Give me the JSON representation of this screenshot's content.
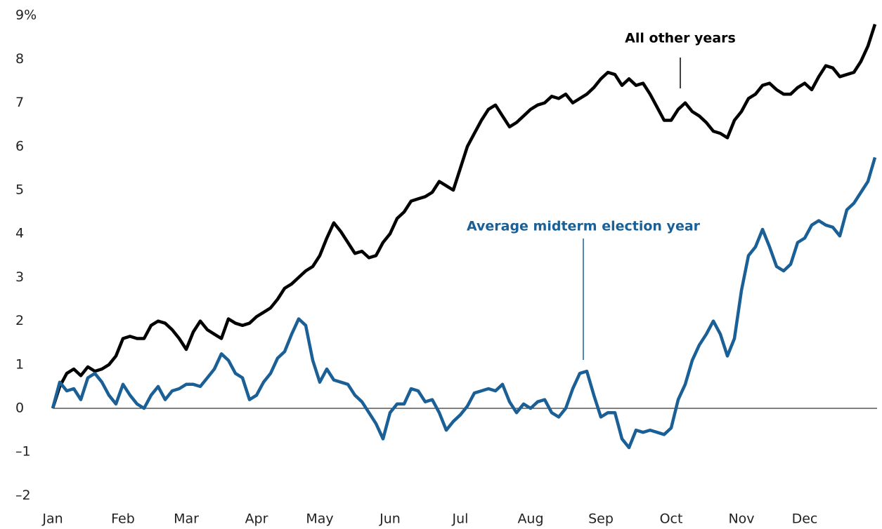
{
  "chart_data": {
    "type": "line",
    "categories": [
      "Jan",
      null,
      null,
      null,
      null,
      null,
      null,
      null,
      null,
      null,
      "Feb",
      null,
      null,
      null,
      null,
      null,
      null,
      null,
      null,
      "Mar",
      null,
      null,
      null,
      null,
      null,
      null,
      null,
      null,
      null,
      "Apr",
      null,
      null,
      null,
      null,
      null,
      null,
      null,
      null,
      "May",
      null,
      null,
      null,
      null,
      null,
      null,
      null,
      null,
      null,
      "Jun",
      null,
      null,
      null,
      null,
      null,
      null,
      null,
      null,
      null,
      "Jul",
      null,
      null,
      null,
      null,
      null,
      null,
      null,
      null,
      null,
      "Aug",
      null,
      null,
      null,
      null,
      null,
      null,
      null,
      null,
      null,
      "Sep",
      null,
      null,
      null,
      null,
      null,
      null,
      null,
      null,
      null,
      "Oct",
      null,
      null,
      null,
      null,
      null,
      null,
      null,
      null,
      null,
      "Nov",
      null,
      null,
      null,
      null,
      null,
      null,
      null,
      null,
      "Dec",
      null,
      null,
      null,
      null,
      null,
      null,
      null,
      null,
      null,
      null
    ],
    "series": [
      {
        "name": "All other years",
        "color": "#000000",
        "values": [
          0,
          0.5,
          0.8,
          0.9,
          0.75,
          0.95,
          0.85,
          0.9,
          1.0,
          1.2,
          1.6,
          1.65,
          1.6,
          1.6,
          1.9,
          2.0,
          1.95,
          1.8,
          1.6,
          1.35,
          1.75,
          2.0,
          1.8,
          1.7,
          1.6,
          2.05,
          1.95,
          1.9,
          1.95,
          2.1,
          2.2,
          2.3,
          2.5,
          2.75,
          2.85,
          3.0,
          3.15,
          3.25,
          3.5,
          3.9,
          4.25,
          4.05,
          3.8,
          3.55,
          3.6,
          3.45,
          3.5,
          3.8,
          4.0,
          4.35,
          4.5,
          4.75,
          4.8,
          4.85,
          4.95,
          5.2,
          5.1,
          5.0,
          5.5,
          6.0,
          6.3,
          6.6,
          6.85,
          6.95,
          6.7,
          6.45,
          6.55,
          6.7,
          6.85,
          6.95,
          7.0,
          7.15,
          7.1,
          7.2,
          7.0,
          7.1,
          7.2,
          7.35,
          7.55,
          7.7,
          7.65,
          7.4,
          7.55,
          7.4,
          7.45,
          7.2,
          6.9,
          6.6,
          6.6,
          6.85,
          7.0,
          6.8,
          6.7,
          6.55,
          6.35,
          6.3,
          6.2,
          6.6,
          6.8,
          7.1,
          7.2,
          7.4,
          7.45,
          7.3,
          7.2,
          7.2,
          7.35,
          7.45,
          7.3,
          7.6,
          7.85,
          7.8,
          7.6,
          7.65,
          7.7,
          7.95,
          8.3,
          8.8
        ]
      },
      {
        "name": "Average midterm election year",
        "color": "#1a6096",
        "values": [
          0,
          0.6,
          0.4,
          0.45,
          0.2,
          0.7,
          0.8,
          0.6,
          0.3,
          0.1,
          0.55,
          0.3,
          0.1,
          0,
          0.3,
          0.5,
          0.2,
          0.4,
          0.45,
          0.55,
          0.55,
          0.5,
          0.7,
          0.9,
          1.25,
          1.1,
          0.8,
          0.7,
          0.2,
          0.3,
          0.6,
          0.8,
          1.15,
          1.3,
          1.7,
          2.05,
          1.9,
          1.1,
          0.6,
          0.9,
          0.65,
          0.6,
          0.55,
          0.3,
          0.15,
          -0.1,
          -0.35,
          -0.7,
          -0.1,
          0.1,
          0.1,
          0.45,
          0.4,
          0.15,
          0.2,
          -0.1,
          -0.5,
          -0.3,
          -0.15,
          0.05,
          0.35,
          0.4,
          0.45,
          0.4,
          0.55,
          0.15,
          -0.1,
          0.1,
          0,
          0.15,
          0.2,
          -0.1,
          -0.2,
          0,
          0.45,
          0.8,
          0.85,
          0.3,
          -0.2,
          -0.1,
          -0.1,
          -0.7,
          -0.9,
          -0.5,
          -0.55,
          -0.5,
          -0.55,
          -0.6,
          -0.45,
          0.2,
          0.55,
          1.1,
          1.45,
          1.7,
          2.0,
          1.7,
          1.2,
          1.6,
          2.7,
          3.5,
          3.7,
          4.1,
          3.7,
          3.25,
          3.15,
          3.3,
          3.8,
          3.9,
          4.2,
          4.3,
          4.2,
          4.15,
          3.95,
          4.55,
          4.7,
          4.95,
          5.2,
          5.75
        ]
      }
    ],
    "ylim": [
      -2,
      9
    ],
    "yticks": [
      {
        "value": -2,
        "label": "–2"
      },
      {
        "value": -1,
        "label": "–1"
      },
      0,
      1,
      2,
      3,
      4,
      5,
      6,
      7,
      8,
      {
        "value": 9,
        "label": "9%"
      }
    ],
    "grid": false
  }
}
